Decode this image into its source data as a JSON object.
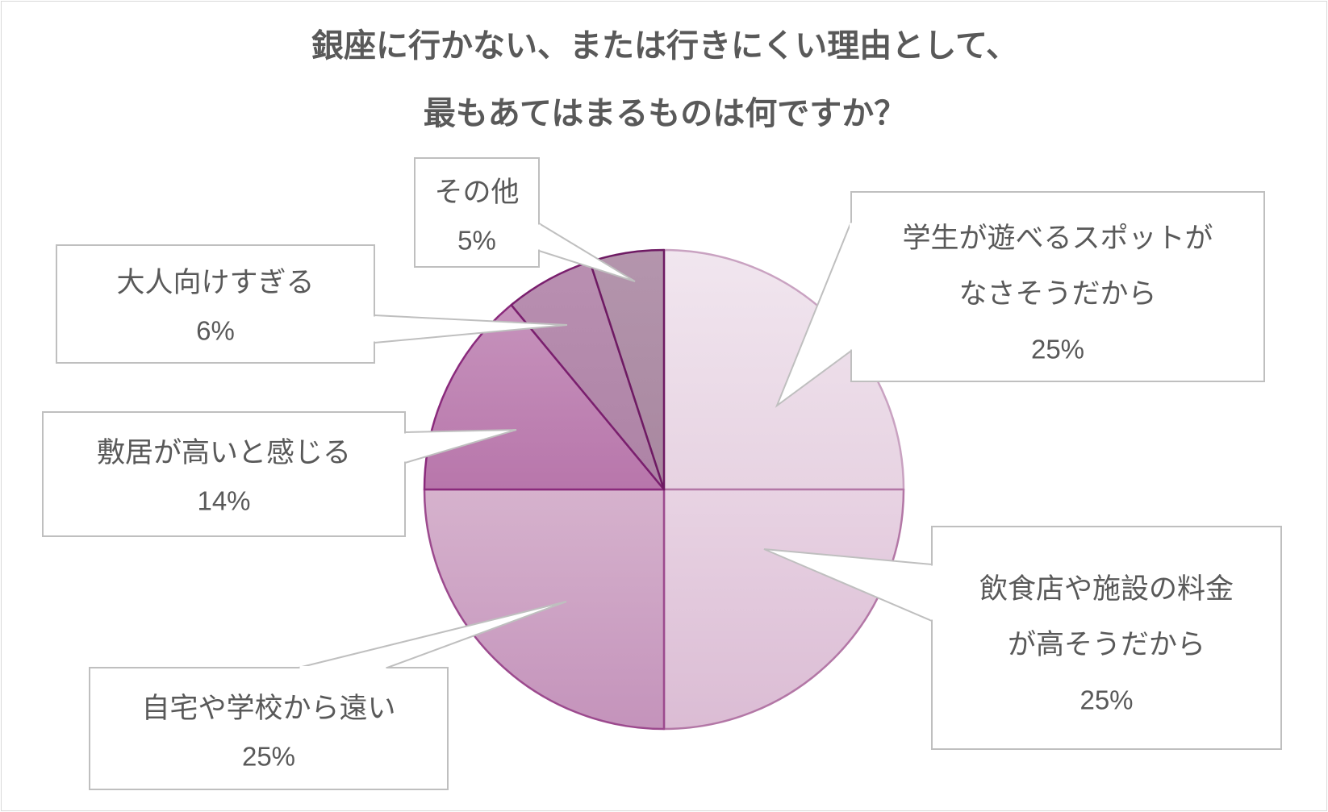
{
  "chart_data": {
    "type": "pie",
    "title": [
      "銀座に行かない、または行きにくい理由として、",
      "最もあてはまるものは何ですか？"
    ],
    "start_angle_deg": 0,
    "direction": "clockwise",
    "slices": [
      {
        "label": [
          "学生が遊べるスポットが",
          "なさそうだから"
        ],
        "value": 25,
        "value_label": "25%",
        "fill_top": "#f1e6ef",
        "fill_bottom": "#e7d3e2",
        "stroke": "#c9a2c1"
      },
      {
        "label": [
          "飲食店や施設の料金",
          "が高そうだから"
        ],
        "value": 25,
        "value_label": "25%",
        "fill_top": "#e8d3e3",
        "fill_bottom": "#dbbcd4",
        "stroke": "#b377a6"
      },
      {
        "label": [
          "自宅や学校から遠い"
        ],
        "value": 25,
        "value_label": "25%",
        "fill_top": "#d6b2cd",
        "fill_bottom": "#c493bb",
        "stroke": "#9c4a8e"
      },
      {
        "label": [
          "敷居が高いと感じる"
        ],
        "value": 14,
        "value_label": "14%",
        "fill_top": "#c693bc",
        "fill_bottom": "#b876ab",
        "stroke": "#8a2a7c"
      },
      {
        "label": [
          "大人向けすぎる"
        ],
        "value": 6,
        "value_label": "6%",
        "fill_top": "#b98fb1",
        "fill_bottom": "#ad83a5",
        "stroke": "#7a1f6e"
      },
      {
        "label": [
          "その他"
        ],
        "value": 5,
        "value_label": "5%",
        "fill_top": "#b495ad",
        "fill_bottom": "#a8879f",
        "stroke": "#6e1a63"
      }
    ],
    "legend": "none",
    "colors": {
      "title": "#595959",
      "label_text": "#595959",
      "callout_border": "#bfbfbf",
      "frame_border": "#d9d9d9"
    }
  }
}
